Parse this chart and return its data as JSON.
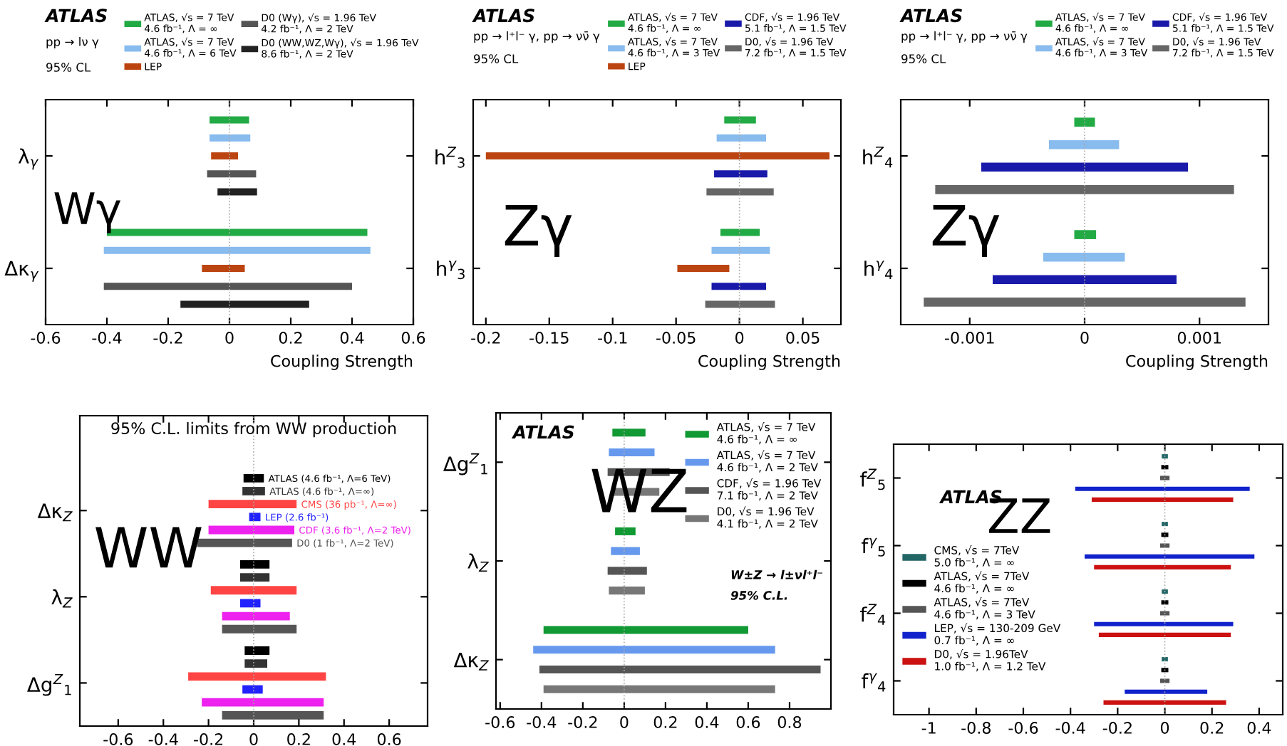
{
  "chart_data": [
    {
      "type": "bar",
      "orientation": "horizontal",
      "title": "Wγ",
      "xlabel": "Coupling Strength",
      "categories": [
        "λ$_{γ}$",
        "Δκ$_{γ}$"
      ],
      "xlim": [
        -0.6,
        0.6
      ],
      "xticks": [
        -0.6,
        -0.4,
        -0.2,
        0,
        0.2,
        0.4,
        0.6
      ],
      "grid": false,
      "legend": "top",
      "annotations": [
        "ATLAS",
        "pp → lν γ",
        "95% CL"
      ],
      "ref_lines": [
        {
          "axis": "x",
          "value": 0,
          "color": "#aaaaaa",
          "line_style": "dotted"
        }
      ],
      "series": [
        {
          "name": "ATLAS, √s = 7 TeV\n4.6 fb⁻¹, Λ = ∞",
          "color": "#22aa44",
          "base": [
            -0.065,
            -0.4
          ],
          "values": [
            0.129,
            0.85
          ]
        },
        {
          "name": "ATLAS, √s = 7 TeV\n4.6 fb⁻¹, Λ = 6 TeV",
          "color": "#88bbee",
          "base": [
            -0.065,
            -0.41
          ],
          "values": [
            0.133,
            0.87
          ]
        },
        {
          "name": "LEP",
          "color": "#bb4411",
          "base": [
            -0.06,
            -0.09
          ],
          "values": [
            0.088,
            0.14
          ]
        },
        {
          "name": "D0 (Wγ), √s = 1.96 TeV\n4.2 fb⁻¹, Λ = 2 TeV",
          "color": "#555555",
          "base": [
            -0.073,
            -0.41
          ],
          "values": [
            0.16,
            0.81
          ]
        },
        {
          "name": "D0 (WW,WZ,Wγ), √s = 1.96 TeV\n8.6 fb⁻¹, Λ = 2 TeV",
          "color": "#222222",
          "base": [
            -0.039,
            -0.16
          ],
          "values": [
            0.129,
            0.42
          ]
        }
      ]
    },
    {
      "type": "bar",
      "orientation": "horizontal",
      "title": "Zγ",
      "xlabel": "Coupling Strength",
      "categories": [
        "h$^{Z}$$_{3}$",
        "h$^{γ}$$_{3}$"
      ],
      "xlim": [
        -0.21,
        0.08
      ],
      "xticks": [
        -0.2,
        -0.15,
        -0.1,
        -0.05,
        0,
        0.05
      ],
      "grid": false,
      "legend": "top",
      "annotations": [
        "ATLAS",
        "pp → l⁺l⁻ γ, pp → νν̄ γ",
        "95% CL"
      ],
      "ref_lines": [
        {
          "axis": "x",
          "value": 0,
          "color": "#aaaaaa",
          "line_style": "dotted"
        }
      ],
      "series": [
        {
          "name": "ATLAS, √s = 7 TeV\n4.6 fb⁻¹, Λ = ∞",
          "color": "#22aa44",
          "base": [
            -0.012,
            -0.015
          ],
          "values": [
            0.025,
            0.031
          ]
        },
        {
          "name": "ATLAS, √s = 7 TeV\n4.6 fb⁻¹, Λ = 3 TeV",
          "color": "#88bbee",
          "base": [
            -0.018,
            -0.022
          ],
          "values": [
            0.039,
            0.046
          ]
        },
        {
          "name": "LEP",
          "color": "#bb4411",
          "base": [
            -0.2,
            -0.049
          ],
          "values": [
            0.271,
            0.041
          ]
        },
        {
          "name": "CDF, √s = 1.96 TeV\n5.1 fb⁻¹, Λ = 1.5 TeV",
          "color": "#1a1aaa",
          "base": [
            -0.02,
            -0.022
          ],
          "values": [
            0.042,
            0.043
          ]
        },
        {
          "name": "D0, √s = 1.96 TeV\n7.2 fb⁻¹, Λ = 1.5 TeV",
          "color": "#666666",
          "base": [
            -0.026,
            -0.027
          ],
          "values": [
            0.053,
            0.055
          ]
        }
      ]
    },
    {
      "type": "bar",
      "orientation": "horizontal",
      "title": "Zγ",
      "xlabel": "Coupling Strength",
      "categories": [
        "h$^{Z}$$_{4}$",
        "h$^{γ}$$_{4}$"
      ],
      "xlim": [
        -0.0016,
        0.0016
      ],
      "xticks": [
        -0.001,
        0,
        0.001
      ],
      "grid": false,
      "legend": "top",
      "annotations": [
        "ATLAS",
        "pp → l⁺l⁻ γ, pp → νν̄ γ",
        "95% CL"
      ],
      "ref_lines": [
        {
          "axis": "x",
          "value": 0,
          "color": "#aaaaaa",
          "line_style": "dotted"
        }
      ],
      "series": [
        {
          "name": "ATLAS, √s = 7 TeV\n4.6 fb⁻¹, Λ = ∞",
          "color": "#22aa44",
          "base": [
            -9e-05,
            -9e-05
          ],
          "values": [
            0.00018,
            0.00019
          ]
        },
        {
          "name": "ATLAS, √s = 7 TeV\n4.6 fb⁻¹, Λ = 3 TeV",
          "color": "#88bbee",
          "base": [
            -0.00031,
            -0.00036
          ],
          "values": [
            0.00061,
            0.00071
          ]
        },
        {
          "name": "CDF, √s = 1.96 TeV\n5.1 fb⁻¹, Λ = 1.5 TeV",
          "color": "#1a1aaa",
          "base": [
            -0.0009,
            -0.0008
          ],
          "values": [
            0.0018,
            0.0016
          ]
        },
        {
          "name": "D0, √s = 1.96 TeV\n7.2 fb⁻¹, Λ = 1.5 TeV",
          "color": "#666666",
          "base": [
            -0.0013,
            -0.0014
          ],
          "values": [
            0.0026,
            0.0028
          ]
        }
      ]
    },
    {
      "type": "bar",
      "orientation": "horizontal",
      "title": "WW",
      "categories": [
        "Δκ$_{Z}$",
        "λ$_{Z}$",
        "Δg$^{Z}$$_{1}$"
      ],
      "xlim": [
        -0.77,
        0.77
      ],
      "xticks": [
        -0.6,
        -0.4,
        -0.2,
        0,
        0.2,
        0.4,
        0.6
      ],
      "grid": false,
      "annotations": [
        "95% C.L. limits from WW production"
      ],
      "ref_lines": [
        {
          "axis": "x",
          "value": 0,
          "color": "#aaaaaa",
          "line_style": "dotted"
        }
      ],
      "series": [
        {
          "name": "ATLAS (4.6 fb⁻¹, Λ=6 TeV)",
          "color": "#000000",
          "base": [
            -0.045,
            -0.06,
            -0.04
          ],
          "values": [
            0.09,
            0.13,
            0.11
          ]
        },
        {
          "name": "ATLAS (4.6 fb⁻¹, Λ=∞)",
          "color": "#333333",
          "base": [
            -0.05,
            -0.06,
            -0.04
          ],
          "values": [
            0.1,
            0.13,
            0.1
          ]
        },
        {
          "name": "CMS (36 pb⁻¹, Λ=∞)",
          "color": "#ff4444",
          "base": [
            -0.2,
            -0.19,
            -0.29
          ],
          "values": [
            0.39,
            0.38,
            0.61
          ]
        },
        {
          "name": "LEP (2.6 fb⁻¹)",
          "color": "#2222ff",
          "base": [
            -0.02,
            -0.06,
            -0.05
          ],
          "values": [
            0.05,
            0.09,
            0.09
          ]
        },
        {
          "name": "CDF (3.6 fb⁻¹, Λ=2 TeV)",
          "color": "#ee22ee",
          "base": [
            -0.2,
            -0.14,
            -0.23
          ],
          "values": [
            0.38,
            0.3,
            0.54
          ]
        },
        {
          "name": "D0 (1 fb⁻¹, Λ=2 TeV)",
          "color": "#555555",
          "base": [
            -0.25,
            -0.14,
            -0.14
          ],
          "values": [
            0.42,
            0.33,
            0.45
          ]
        }
      ]
    },
    {
      "type": "bar",
      "orientation": "horizontal",
      "title": "WZ",
      "categories": [
        "Δg$^{Z}$$_{1}$",
        "λ$_{Z}$",
        "Δκ$_{Z}$"
      ],
      "xlim": [
        -0.62,
        1.0
      ],
      "xticks": [
        -0.6,
        -0.4,
        -0.2,
        0,
        0.2,
        0.4,
        0.6,
        0.8
      ],
      "grid": false,
      "legend": "top right",
      "annotations": [
        "ATLAS",
        "W±Z → l±νl⁺l⁻",
        "95% C.L."
      ],
      "ref_lines": [
        {
          "axis": "x",
          "value": 0,
          "color": "#aaaaaa",
          "line_style": "dotted"
        }
      ],
      "series": [
        {
          "name": "ATLAS, √s = 7 TeV\n4.6 fb⁻¹, Λ = ∞",
          "color": "#119933",
          "base": [
            -0.057,
            -0.044,
            -0.39
          ],
          "values": [
            0.16,
            0.099,
            0.99
          ]
        },
        {
          "name": "ATLAS, √s = 7 TeV\n4.6 fb⁻¹, Λ = 2 TeV",
          "color": "#6699ee",
          "base": [
            -0.074,
            -0.064,
            -0.44
          ],
          "values": [
            0.221,
            0.14,
            1.17
          ]
        },
        {
          "name": "CDF, √s = 1.96 TeV\n7.1 fb⁻¹, Λ = 2 TeV",
          "color": "#555555",
          "base": [
            -0.08,
            -0.08,
            -0.41
          ],
          "values": [
            0.3,
            0.19,
            1.36
          ]
        },
        {
          "name": "D0, √s = 1.96 TeV\n4.1 fb⁻¹, Λ = 2 TeV",
          "color": "#777777",
          "base": [
            -0.055,
            -0.074,
            -0.39
          ],
          "values": [
            0.225,
            0.174,
            1.12
          ]
        }
      ]
    },
    {
      "type": "bar",
      "orientation": "horizontal",
      "title": "ZZ",
      "categories": [
        "f$^{Z}$$_{5}$",
        "f$^{γ}$$_{5}$",
        "f$^{Z}$$_{4}$",
        "f$^{γ}$$_{4}$"
      ],
      "xlim": [
        -1.15,
        0.5
      ],
      "xticks": [
        -1,
        -0.8,
        -0.6,
        -0.4,
        -0.2,
        0,
        0.2,
        0.4
      ],
      "grid": false,
      "legend": "left",
      "annotations": [
        "ATLAS"
      ],
      "ref_lines": [
        {
          "axis": "x",
          "value": 0,
          "color": "#aaaaaa",
          "line_style": "dotted"
        }
      ],
      "series": [
        {
          "name": "CMS, √s = 7TeV\n5.0 fb⁻¹, Λ = ∞",
          "color": "#226666",
          "base": [
            -0.013,
            -0.013,
            -0.013,
            -0.013
          ],
          "values": [
            0.026,
            0.026,
            0.026,
            0.026
          ]
        },
        {
          "name": "ATLAS, √s = 7TeV\n4.6 fb⁻¹, Λ = ∞",
          "color": "#000000",
          "base": [
            -0.015,
            -0.015,
            -0.015,
            -0.015
          ],
          "values": [
            0.03,
            0.03,
            0.03,
            0.03
          ]
        },
        {
          "name": "ATLAS, √s = 7TeV\n4.6 fb⁻¹, Λ = 3 TeV",
          "color": "#555555",
          "base": [
            -0.02,
            -0.02,
            -0.02,
            -0.02
          ],
          "values": [
            0.04,
            0.04,
            0.04,
            0.04
          ]
        },
        {
          "name": "LEP, √s = 130-209 GeV\n0.7 fb⁻¹, Λ = ∞",
          "color": "#1122cc",
          "base": [
            -0.38,
            -0.34,
            -0.3,
            -0.17
          ],
          "values": [
            0.74,
            0.72,
            0.59,
            0.35
          ]
        },
        {
          "name": "D0, √s = 1.96TeV\n1.0 fb⁻¹, Λ = 1.2 TeV",
          "color": "#cc1111",
          "base": [
            -0.31,
            -0.3,
            -0.28,
            -0.26
          ],
          "values": [
            0.6,
            0.58,
            0.56,
            0.52
          ]
        }
      ]
    }
  ]
}
